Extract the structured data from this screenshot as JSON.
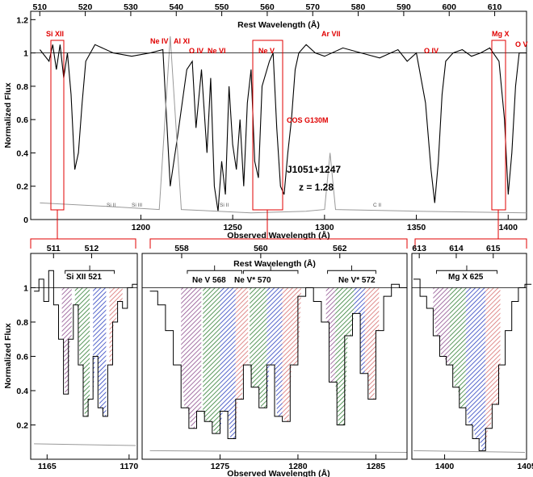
{
  "chart_data": [
    {
      "type": "line",
      "panel": "overview",
      "xlabel": "Observed Wavelength (Å)",
      "ylabel": "Normalized Flux",
      "top_xlabel": "Rest Wavelength (Å)",
      "xlim": [
        1140,
        1410
      ],
      "ylim": [
        0,
        1.25
      ],
      "x_ticks": [
        1200,
        1250,
        1300,
        1350,
        1400
      ],
      "y_ticks": [
        "0",
        "0.2",
        "0.4",
        "0.6",
        "0.8",
        "1",
        "1.2"
      ],
      "top_ticks": [
        510,
        520,
        530,
        540,
        550,
        560,
        570,
        580,
        590,
        600,
        610
      ],
      "continuum": 1.0,
      "instrument_label": "COS G130M",
      "object_label": "J1051+1247",
      "redshift_label": "z = 1.28",
      "ion_labels": [
        "Si XII",
        "Ne IV",
        "Al XI",
        "O IV",
        "Ne VI",
        "Ne V",
        "Ar VII",
        "O IV",
        "Mg X",
        "O V"
      ],
      "galactic_labels": [
        "Si II",
        "Si III",
        "Si II",
        "C II"
      ],
      "highlight_boxes": [
        "Si XII",
        "Ne V",
        "Mg X"
      ],
      "series": [
        {
          "name": "flux",
          "x": [
            1145,
            1150,
            1152,
            1154,
            1156,
            1158,
            1160,
            1162,
            1164,
            1166,
            1168,
            1170,
            1175,
            1185,
            1195,
            1205,
            1212,
            1216,
            1220,
            1225,
            1228,
            1230,
            1233,
            1236,
            1238,
            1240,
            1242,
            1244,
            1246,
            1248,
            1250,
            1252,
            1254,
            1256,
            1258,
            1260,
            1262,
            1264,
            1266,
            1270,
            1272,
            1274,
            1276,
            1278,
            1280,
            1282,
            1284,
            1286,
            1290,
            1295,
            1300,
            1310,
            1320,
            1330,
            1340,
            1345,
            1350,
            1355,
            1358,
            1360,
            1362,
            1364,
            1366,
            1370,
            1375,
            1380,
            1385,
            1390,
            1395,
            1398,
            1400,
            1402,
            1404,
            1406,
            1410
          ],
          "y": [
            1.02,
            0.95,
            1.05,
            0.9,
            1.05,
            0.85,
            1.0,
            0.75,
            0.3,
            0.4,
            0.7,
            0.95,
            1.05,
            1.0,
            0.98,
            1.0,
            1.02,
            0.2,
            0.5,
            0.9,
            0.95,
            0.55,
            0.9,
            0.4,
            0.85,
            0.2,
            0.05,
            0.35,
            0.15,
            0.8,
            0.45,
            0.3,
            0.6,
            0.2,
            0.7,
            0.9,
            0.35,
            0.25,
            0.8,
            0.95,
            1.0,
            0.55,
            0.2,
            0.15,
            0.4,
            0.6,
            0.9,
            1.0,
            1.05,
            1.0,
            0.98,
            1.03,
            1.0,
            0.97,
            1.02,
            0.95,
            1.0,
            0.7,
            0.3,
            0.1,
            0.35,
            0.75,
            0.95,
            1.0,
            1.02,
            0.98,
            1.0,
            1.03,
            0.95,
            0.6,
            0.15,
            0.4,
            0.8,
            1.0,
            1.0
          ]
        },
        {
          "name": "error",
          "x": [
            1145,
            1180,
            1210,
            1216,
            1222,
            1260,
            1290,
            1300,
            1303,
            1306,
            1350,
            1410
          ],
          "y": [
            0.1,
            0.08,
            0.06,
            1.1,
            0.06,
            0.04,
            0.05,
            0.06,
            0.4,
            0.06,
            0.05,
            0.04
          ]
        }
      ]
    },
    {
      "type": "line",
      "panel": "Si XII",
      "component_label": "Si XII 521",
      "xlim": [
        1164,
        1170.5
      ],
      "ylim": [
        0,
        1.2
      ],
      "x_ticks": [
        1165,
        1170
      ],
      "top_ticks": [
        511,
        512
      ],
      "component_colors": [
        "#8e4f8e",
        "#2e7d32",
        "#2b3fbf",
        "#d76f6f"
      ],
      "series": [
        {
          "name": "flux",
          "x": [
            1164.2,
            1164.5,
            1164.8,
            1165.1,
            1165.4,
            1165.7,
            1166.0,
            1166.3,
            1166.6,
            1166.9,
            1167.2,
            1167.5,
            1167.8,
            1168.1,
            1168.4,
            1168.7,
            1169.0,
            1169.3,
            1169.6,
            1169.9,
            1170.2
          ],
          "y": [
            0.98,
            1.05,
            0.92,
            1.1,
            0.9,
            0.7,
            0.38,
            0.7,
            0.9,
            0.55,
            0.25,
            0.35,
            0.6,
            0.3,
            0.25,
            0.55,
            0.8,
            0.92,
            0.88,
            1.0,
            1.02
          ]
        },
        {
          "name": "error",
          "x": [
            1164.2,
            1170.4
          ],
          "y": [
            0.09,
            0.08
          ]
        }
      ]
    },
    {
      "type": "line",
      "panel": "Ne V",
      "component_labels": [
        "Ne V 568",
        "Ne V* 570",
        "Ne V* 572"
      ],
      "top_xlabel": "Rest Wavelength (Å)",
      "xlim": [
        1270,
        1287
      ],
      "ylim": [
        0,
        1.2
      ],
      "x_ticks": [
        1275,
        1280,
        1285
      ],
      "top_ticks": [
        558,
        560,
        562
      ],
      "series": [
        {
          "name": "flux",
          "x": [
            1270.5,
            1271.0,
            1271.5,
            1272.0,
            1272.5,
            1273.0,
            1273.5,
            1274.0,
            1274.5,
            1275.0,
            1275.5,
            1276.0,
            1276.5,
            1277.0,
            1277.5,
            1278.0,
            1278.5,
            1279.0,
            1279.5,
            1280.0,
            1280.5,
            1281.0,
            1281.5,
            1282.0,
            1282.5,
            1283.0,
            1283.5,
            1284.0,
            1284.5,
            1285.0,
            1285.5,
            1286.0,
            1286.5
          ],
          "y": [
            0.98,
            0.9,
            0.75,
            0.55,
            0.3,
            0.18,
            0.28,
            0.22,
            0.15,
            0.28,
            0.12,
            0.35,
            0.55,
            0.42,
            0.3,
            0.55,
            0.25,
            0.22,
            0.55,
            0.95,
            1.0,
            0.92,
            0.8,
            0.45,
            0.2,
            0.72,
            0.85,
            0.5,
            0.35,
            0.75,
            0.95,
            1.02,
            1.0
          ]
        },
        {
          "name": "error",
          "x": [
            1270.5,
            1287
          ],
          "y": [
            0.05,
            0.04
          ]
        }
      ]
    },
    {
      "type": "line",
      "panel": "Mg X",
      "component_label": "Mg X 625",
      "xlim": [
        1398,
        1405
      ],
      "ylim": [
        0,
        1.2
      ],
      "x_ticks": [
        1400,
        1405
      ],
      "top_ticks": [
        613,
        614,
        615
      ],
      "series": [
        {
          "name": "flux",
          "x": [
            1398.1,
            1398.5,
            1398.9,
            1399.3,
            1399.7,
            1400.1,
            1400.5,
            1400.9,
            1401.3,
            1401.7,
            1402.1,
            1402.5,
            1402.9,
            1403.3,
            1403.7,
            1404.1,
            1404.5,
            1404.9
          ],
          "y": [
            1.05,
            0.95,
            0.88,
            0.72,
            0.6,
            0.55,
            0.42,
            0.3,
            0.2,
            0.12,
            0.05,
            0.18,
            0.32,
            0.55,
            0.75,
            0.92,
            1.0,
            1.02
          ]
        },
        {
          "name": "error",
          "x": [
            1398.1,
            1404.9
          ],
          "y": [
            0.05,
            0.04
          ]
        }
      ]
    }
  ]
}
